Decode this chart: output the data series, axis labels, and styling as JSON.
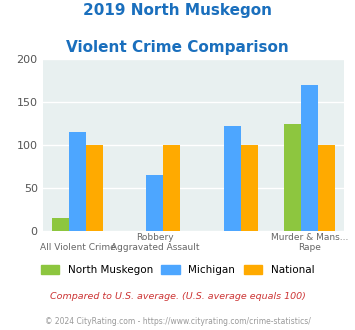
{
  "title_line1": "2019 North Muskegon",
  "title_line2": "Violent Crime Comparison",
  "north_muskegon": [
    15,
    0,
    0,
    125
  ],
  "michigan": [
    115,
    65,
    122,
    170
  ],
  "national": [
    100,
    100,
    100,
    100
  ],
  "color_nm": "#8dc63f",
  "color_mi": "#4da6ff",
  "color_nat": "#ffaa00",
  "ylim": [
    0,
    200
  ],
  "yticks": [
    0,
    50,
    100,
    150,
    200
  ],
  "bg_color": "#e8f0f0",
  "title_color": "#1a6fbd",
  "top_labels": [
    "",
    "Robbery",
    "",
    "Murder & Mans..."
  ],
  "bot_labels": [
    "All Violent Crime",
    "Aggravated Assault",
    "",
    "Rape"
  ],
  "footnote1": "Compared to U.S. average. (U.S. average equals 100)",
  "footnote2": "© 2024 CityRating.com - https://www.cityrating.com/crime-statistics/",
  "footnote1_color": "#cc3333",
  "footnote2_color": "#999999",
  "legend_labels": [
    "North Muskegon",
    "Michigan",
    "National"
  ]
}
